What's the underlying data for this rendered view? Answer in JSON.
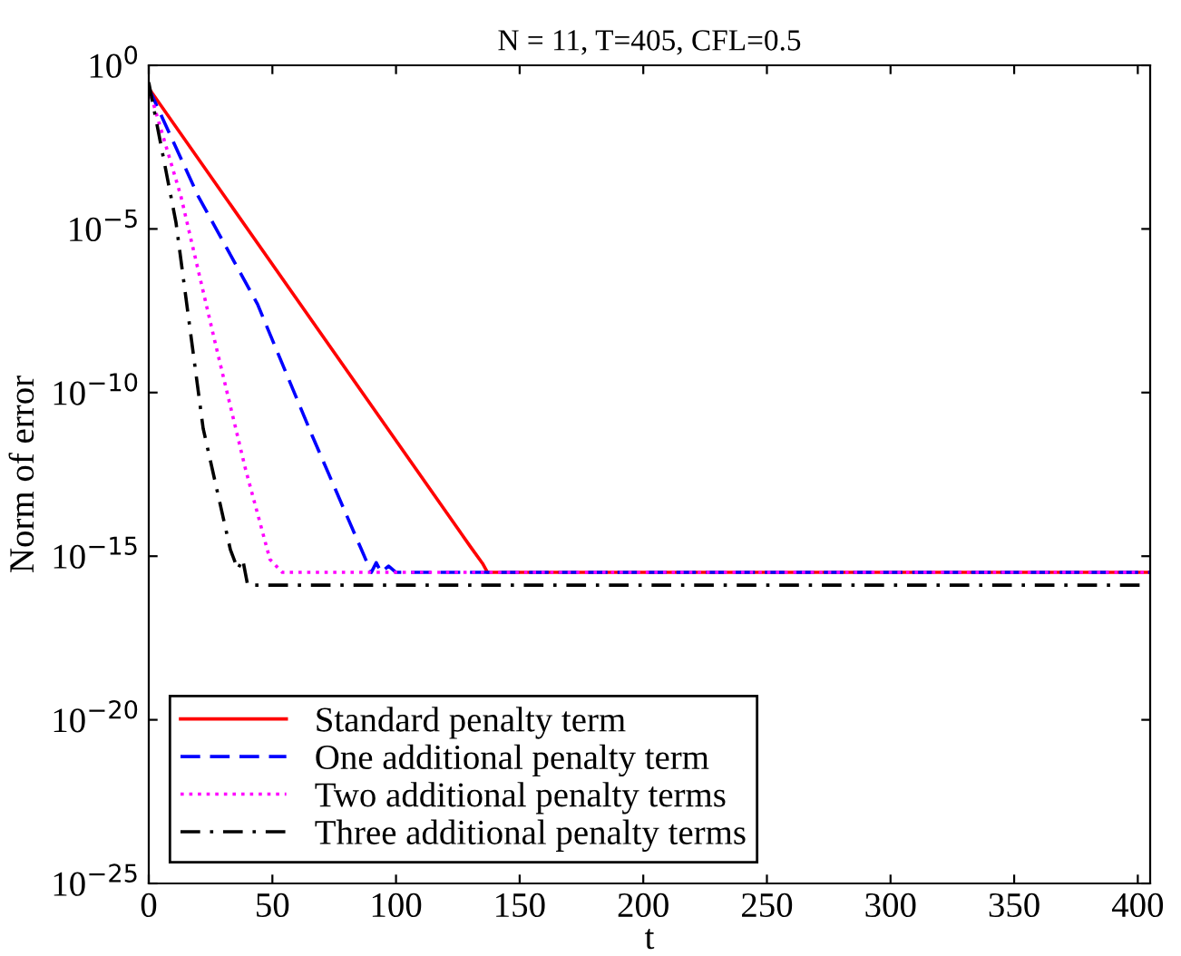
{
  "chart_data": {
    "type": "line",
    "title": "N = 11, T=405, CFL=0.5",
    "xlabel": "t",
    "ylabel": "Norm of error",
    "log": "y",
    "xlim": [
      0,
      405
    ],
    "ylim": [
      1e-25,
      1
    ],
    "xticks": [
      0,
      50,
      100,
      150,
      200,
      250,
      300,
      350,
      400
    ],
    "yticks": [
      {
        "value": 1e-25,
        "label": "10$^{−25}$"
      },
      {
        "value": 1e-20,
        "label": "10$^{−20}$"
      },
      {
        "value": 1e-15,
        "label": "10$^{−15}$"
      },
      {
        "value": 1e-10,
        "label": "10$^{−10}$"
      },
      {
        "value": 1e-05,
        "label": "10$^{−5}$"
      },
      {
        "value": 1,
        "label": "10$^{0}$"
      }
    ],
    "grid": false,
    "legend": "bottom left",
    "marker": "none",
    "series": [
      {
        "name": "Standard penalty term",
        "color": "#ff0000",
        "line_style": "solid",
        "x": [
          0,
          130,
          135,
          137,
          405
        ],
        "values": [
          0.2,
          2e-15,
          6e-16,
          3.2e-16,
          3.2e-16
        ]
      },
      {
        "name": "One additional penalty term",
        "color": "#0000ff",
        "line_style": "dashed",
        "x": [
          0,
          20,
          44,
          66,
          86,
          90,
          92,
          94,
          97,
          100,
          405
        ],
        "values": [
          0.2,
          0.0001,
          5e-08,
          5e-12,
          1.6e-15,
          3.2e-16,
          6.3e-16,
          3.2e-16,
          5e-16,
          3.2e-16,
          3.2e-16
        ]
      },
      {
        "name": "Two additional penalty terms",
        "color": "#ff00ff",
        "line_style": "dotted",
        "x": [
          0,
          13,
          27,
          39,
          49,
          54,
          405
        ],
        "values": [
          0.2,
          0.0001,
          3e-09,
          5e-13,
          8e-16,
          3.2e-16,
          3.2e-16
        ]
      },
      {
        "name": "Three additional penalty terms",
        "color": "#000000",
        "line_style": "dashdot",
        "x": [
          0,
          11,
          22,
          33,
          36,
          38,
          40,
          405
        ],
        "values": [
          0.3,
          1.6e-05,
          8e-12,
          1.6e-15,
          4e-16,
          8e-16,
          1.3e-16,
          1.3e-16
        ]
      }
    ]
  }
}
